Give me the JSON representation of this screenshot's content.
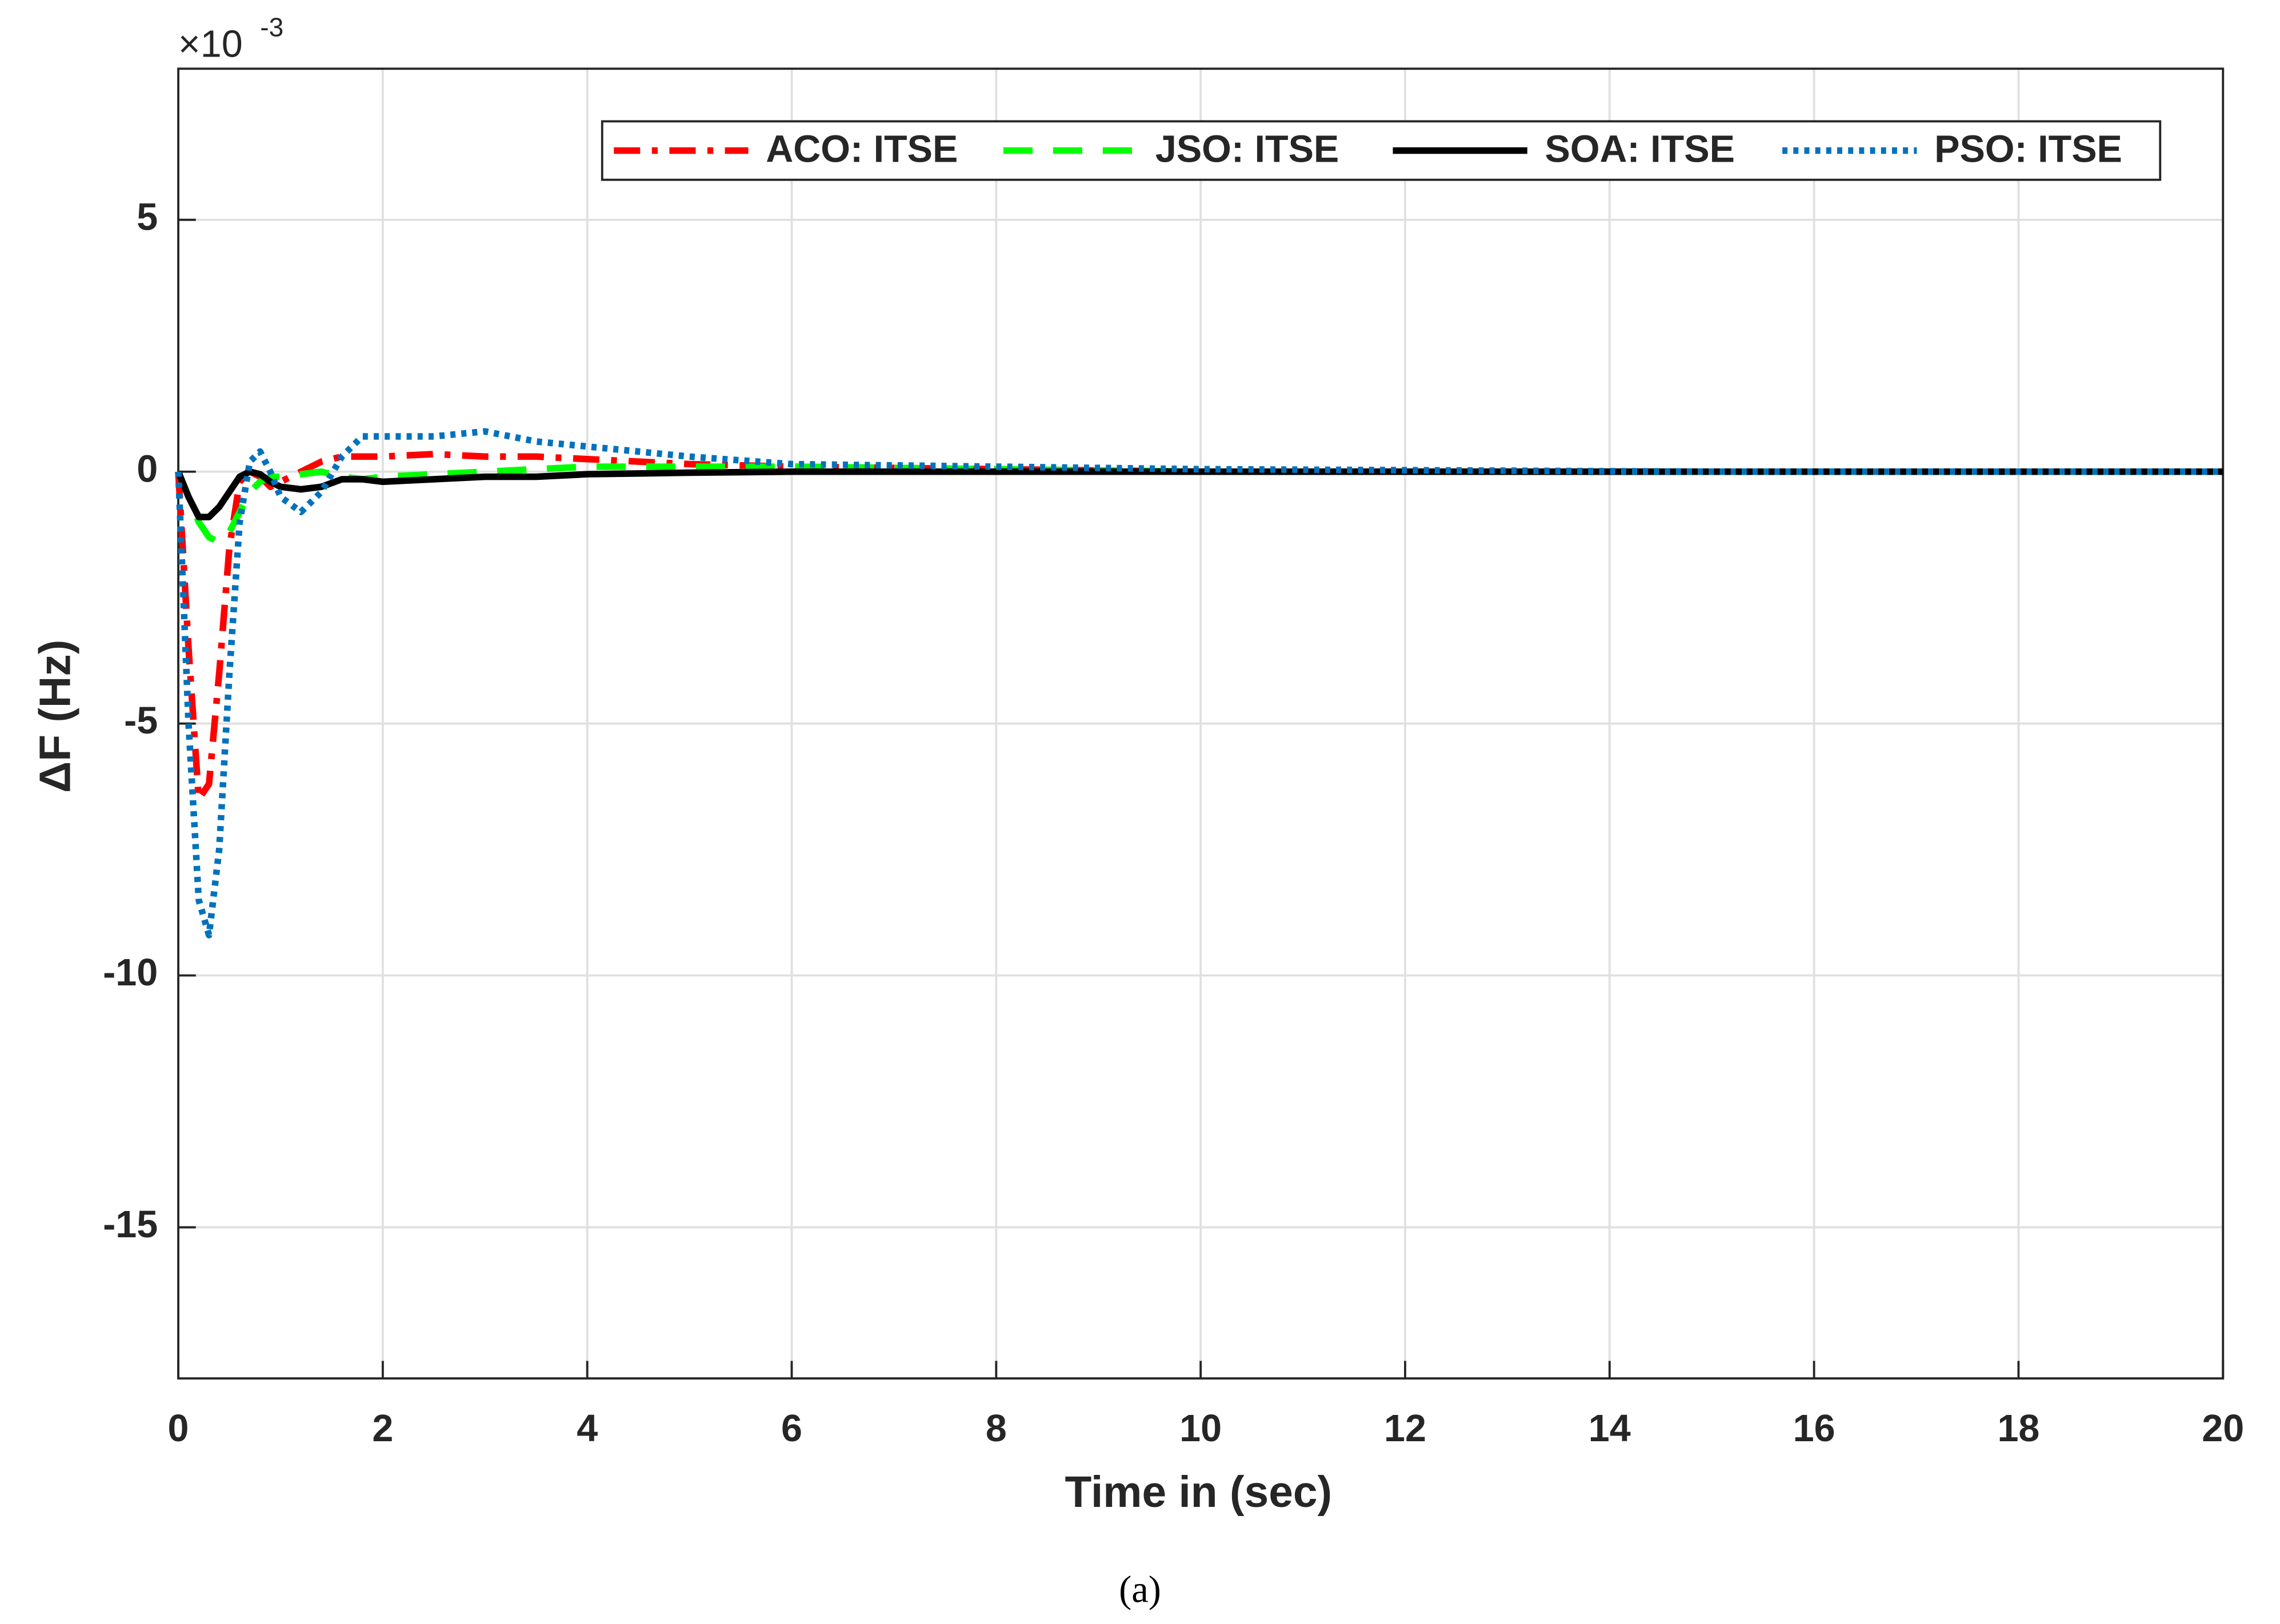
{
  "chart_data": {
    "type": "line",
    "y_multiplier": "×10",
    "y_multiplier_exponent": "-3",
    "xlabel": "Time in (sec)",
    "ylabel": "ΔF (Hz)",
    "caption": "(a)",
    "x": [
      0,
      0.1,
      0.2,
      0.3,
      0.4,
      0.5,
      0.6,
      0.7,
      0.8,
      0.9,
      1.0,
      1.2,
      1.4,
      1.6,
      1.8,
      2,
      2.5,
      3,
      3.5,
      4,
      5,
      6,
      8,
      10,
      15,
      20
    ],
    "series": [
      {
        "name": "ACO: ITSE",
        "color": "#ff0000",
        "style": "dash-dot",
        "values": [
          0,
          -3.5,
          -6.5,
          -6.2,
          -4,
          -1.5,
          -0.2,
          0,
          -0.1,
          -0.3,
          -0.2,
          0,
          0.2,
          0.3,
          0.3,
          0.3,
          0.35,
          0.3,
          0.3,
          0.25,
          0.15,
          0.1,
          0.05,
          0,
          0,
          0
        ]
      },
      {
        "name": "JSO: ITSE",
        "color": "#00ff00",
        "style": "dashed",
        "values": [
          0,
          -0.5,
          -1.0,
          -1.3,
          -1.4,
          -1.2,
          -0.8,
          -0.4,
          -0.2,
          -0.1,
          -0.1,
          -0.05,
          0,
          -0.1,
          -0.15,
          -0.1,
          -0.05,
          0,
          0.05,
          0.1,
          0.1,
          0.1,
          0.05,
          0,
          0,
          0
        ]
      },
      {
        "name": "SOA: ITSE",
        "color": "#000000",
        "style": "solid",
        "values": [
          0,
          -0.5,
          -0.9,
          -0.9,
          -0.7,
          -0.4,
          -0.1,
          0,
          -0.05,
          -0.2,
          -0.3,
          -0.35,
          -0.3,
          -0.15,
          -0.15,
          -0.2,
          -0.15,
          -0.1,
          -0.1,
          -0.05,
          -0.02,
          0,
          0,
          0,
          0,
          0
        ]
      },
      {
        "name": "PSO: ITSE",
        "color": "#0072bd",
        "style": "dotted",
        "values": [
          0,
          -5,
          -8.5,
          -9.2,
          -7.5,
          -4,
          -1,
          0.2,
          0.4,
          0,
          -0.5,
          -0.8,
          -0.4,
          0.3,
          0.7,
          0.7,
          0.7,
          0.8,
          0.6,
          0.5,
          0.3,
          0.15,
          0.1,
          0.05,
          0,
          0
        ]
      }
    ],
    "xlim": [
      0,
      20
    ],
    "xticks": [
      0,
      2,
      4,
      6,
      8,
      10,
      12,
      14,
      16,
      18,
      20
    ],
    "ylim": [
      -18,
      8
    ],
    "yticks": [
      -15,
      -10,
      -5,
      0,
      5
    ],
    "grid": true,
    "legend": "top"
  }
}
